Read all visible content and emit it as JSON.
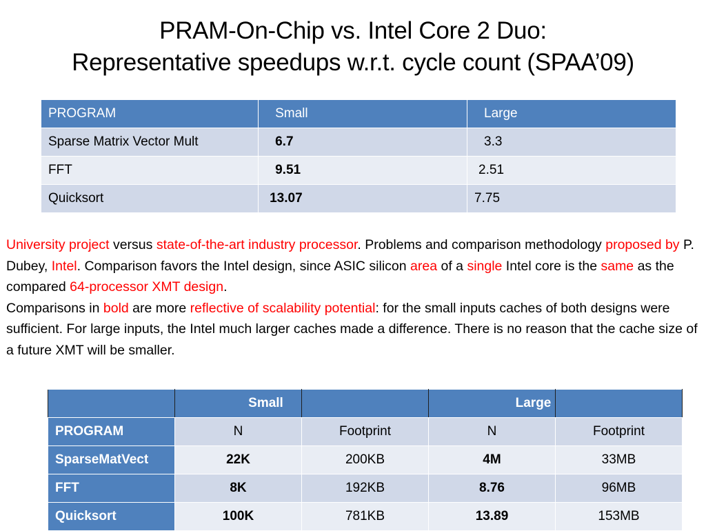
{
  "title": {
    "line1": "PRAM-On-Chip vs. Intel Core 2 Duo:",
    "line2": "Representative speedups w.r.t. cycle count (SPAA’09)"
  },
  "table1": {
    "headers": [
      "PROGRAM",
      "Small",
      "Large"
    ],
    "rows": [
      {
        "program": "Sparse Matrix Vector Mult",
        "small": "6.7",
        "large": "3.3"
      },
      {
        "program": "FFT",
        "small": "9.51",
        "large": "2.51"
      },
      {
        "program": "Quicksort",
        "small": "13.07",
        "large": "7.75"
      }
    ]
  },
  "paragraph": {
    "s01": "University project",
    "s02": " versus ",
    "s03": "state-of-the-art industry processor",
    "s04": ". Problems and comparison methodology ",
    "s05": "proposed by",
    "s06": " P. Dubey, ",
    "s07": "Intel",
    "s08": ". Comparison favors the Intel design, since ASIC silicon ",
    "s09": "area",
    "s10": " of a ",
    "s11": "single",
    "s12": " Intel core is the ",
    "s13": "same",
    "s14": " as the compared ",
    "s15": "64-processor XMT design",
    "s16": ".",
    "s17": "Comparisons in ",
    "s18": "bold",
    "s19": " are more ",
    "s20": "reflective of scalability potential",
    "s21": ": for the small inputs caches of both designs were sufficient. For large inputs, the Intel much larger caches made a difference. There is no reason that the cache size of a future XMT will be smaller."
  },
  "table2": {
    "group_headers": [
      "",
      "Small",
      "",
      "Large",
      ""
    ],
    "subheaders": {
      "program": "PROGRAM",
      "small_n": "N",
      "small_fp": "Footprint",
      "large_n": "N",
      "large_fp": "Footprint"
    },
    "rows": [
      {
        "program": "SparseMatVect",
        "small_n": "22K",
        "small_fp": "200KB",
        "large_n": "4M",
        "large_fp": "33MB"
      },
      {
        "program": "FFT",
        "small_n": "8K",
        "small_fp": "192KB",
        "large_n": "8.76",
        "large_fp": "96MB"
      },
      {
        "program": "Quicksort",
        "small_n": "100K",
        "small_fp": "781KB",
        "large_n": "13.89",
        "large_fp": "153MB"
      }
    ]
  }
}
